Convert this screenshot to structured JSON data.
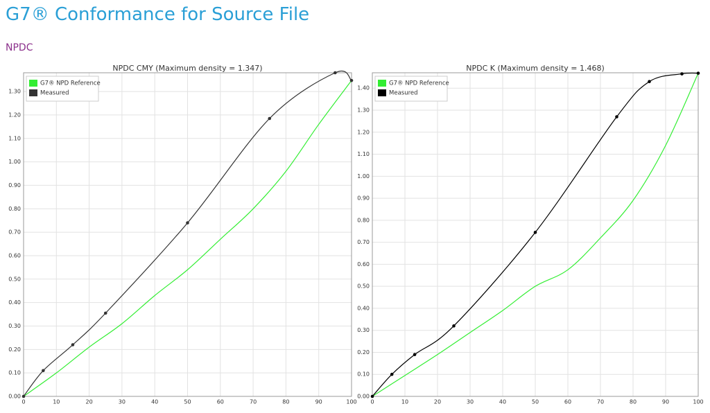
{
  "header": {
    "title": "G7® Conformance for Source File",
    "subtitle": "NPDC"
  },
  "chart_data": [
    {
      "type": "line",
      "title": "NPDC CMY (Maximum density = 1.347)",
      "xlim": [
        0,
        100
      ],
      "ylim": [
        0,
        1.38
      ],
      "grid": true,
      "legend": "top-left",
      "xticks": [
        0,
        10,
        20,
        30,
        40,
        50,
        60,
        70,
        80,
        90,
        100
      ],
      "yticks": [
        {
          "value": 0,
          "label": "0.00"
        },
        {
          "value": 0.1,
          "label": "0.10"
        },
        {
          "value": 0.2,
          "label": "0.20"
        },
        {
          "value": 0.3,
          "label": "0.30"
        },
        {
          "value": 0.4,
          "label": "0.40"
        },
        {
          "value": 0.5,
          "label": "0.50"
        },
        {
          "value": 0.6,
          "label": "0.60"
        },
        {
          "value": 0.7,
          "label": "0.70"
        },
        {
          "value": 0.8,
          "label": "0.80"
        },
        {
          "value": 0.9,
          "label": "0.90"
        },
        {
          "value": 1,
          "label": "1.00"
        },
        {
          "value": 1.1,
          "label": "1.10"
        },
        {
          "value": 1.2,
          "label": "1.20"
        },
        {
          "value": 1.3,
          "label": "1.30"
        }
      ],
      "series": [
        {
          "name": "G7® NPD Reference",
          "color": "#33ee33",
          "markers": false,
          "x": [
            0,
            10,
            20,
            30,
            40,
            50,
            60,
            70,
            80,
            90,
            100
          ],
          "values": [
            0,
            0.1,
            0.21,
            0.31,
            0.43,
            0.54,
            0.67,
            0.8,
            0.96,
            1.16,
            1.347
          ]
        },
        {
          "name": "Measured",
          "color": "#333333",
          "markers": true,
          "x": [
            0,
            6,
            15,
            25,
            50,
            75,
            95,
            100
          ],
          "values": [
            0,
            0.11,
            0.22,
            0.355,
            0.74,
            1.185,
            1.38,
            1.347
          ]
        }
      ]
    },
    {
      "type": "line",
      "title": "NPDC K (Maximum density = 1.468)",
      "xlim": [
        0,
        100
      ],
      "ylim": [
        0,
        1.47
      ],
      "grid": true,
      "legend": "top-left",
      "xticks": [
        0,
        10,
        20,
        30,
        40,
        50,
        60,
        70,
        80,
        90,
        100
      ],
      "yticks": [
        {
          "value": 0,
          "label": "0.00"
        },
        {
          "value": 0.1,
          "label": "0.10"
        },
        {
          "value": 0.2,
          "label": "0.20"
        },
        {
          "value": 0.3,
          "label": "0.30"
        },
        {
          "value": 0.4,
          "label": "0.40"
        },
        {
          "value": 0.5,
          "label": "0.50"
        },
        {
          "value": 0.6,
          "label": "0.60"
        },
        {
          "value": 0.7,
          "label": "0.70"
        },
        {
          "value": 0.8,
          "label": "0.80"
        },
        {
          "value": 0.9,
          "label": "0.90"
        },
        {
          "value": 1,
          "label": "1.00"
        },
        {
          "value": 1.1,
          "label": "1.10"
        },
        {
          "value": 1.2,
          "label": "1.20"
        },
        {
          "value": 1.3,
          "label": "1.30"
        },
        {
          "value": 1.4,
          "label": "1.40"
        }
      ],
      "series": [
        {
          "name": "G7® NPD Reference",
          "color": "#33ee33",
          "markers": false,
          "x": [
            0,
            10,
            20,
            30,
            40,
            50,
            60,
            70,
            80,
            90,
            100
          ],
          "values": [
            0,
            0.095,
            0.19,
            0.29,
            0.39,
            0.5,
            0.575,
            0.72,
            0.89,
            1.14,
            1.468
          ]
        },
        {
          "name": "Measured",
          "color": "#000000",
          "markers": true,
          "x": [
            0,
            6,
            13,
            25,
            50,
            75,
            85,
            95,
            100
          ],
          "values": [
            0,
            0.1,
            0.19,
            0.32,
            0.745,
            1.27,
            1.43,
            1.465,
            1.468
          ]
        }
      ]
    }
  ]
}
